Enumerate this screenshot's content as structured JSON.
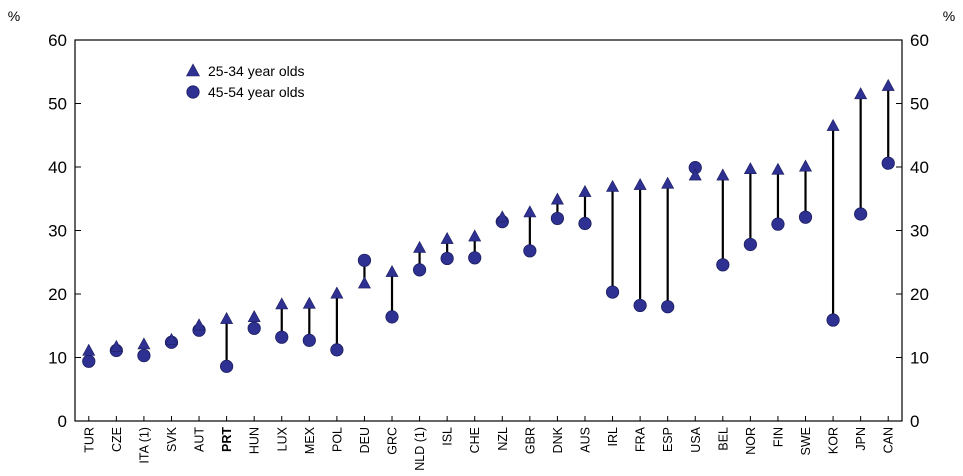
{
  "chart_data": {
    "type": "scatter",
    "categories": [
      "TUR",
      "CZE",
      "ITA (1)",
      "SVK",
      "AUT",
      "PRT",
      "HUN",
      "LUX",
      "MEX",
      "POL",
      "DEU",
      "GRC",
      "NLD (1)",
      "ISL",
      "CHE",
      "NZL",
      "GBR",
      "DNK",
      "AUS",
      "IRL",
      "FRA",
      "ESP",
      "USA",
      "BEL",
      "NOR",
      "FIN",
      "SWE",
      "KOR",
      "JPN",
      "CAN"
    ],
    "highlight_category": "PRT",
    "series": [
      {
        "name": "25-34 year olds",
        "marker": "triangle",
        "values": [
          11,
          11.6,
          12,
          12.7,
          15,
          16,
          16.3,
          18.3,
          18.4,
          20,
          21.6,
          23.4,
          27.2,
          28.6,
          29,
          32,
          32.8,
          34.8,
          36,
          36.8,
          37.1,
          37.3,
          38.6,
          38.6,
          39.6,
          39.5,
          40,
          46.4,
          51.4,
          52.7
        ]
      },
      {
        "name": "45-54 year olds",
        "marker": "circle",
        "values": [
          9.4,
          11.1,
          10.3,
          12.4,
          14.3,
          8.6,
          14.6,
          13.2,
          12.7,
          11.2,
          25.3,
          16.4,
          23.8,
          25.6,
          25.7,
          31.4,
          26.8,
          31.9,
          31.1,
          20.3,
          18.2,
          18,
          39.9,
          24.6,
          27.8,
          31,
          32.1,
          15.9,
          32.6,
          40.6
        ]
      }
    ],
    "ylim": [
      0,
      60
    ],
    "yticks": [
      0,
      10,
      20,
      30,
      40,
      50,
      60
    ],
    "yunit_left": "%",
    "yunit_right": "%",
    "legend_position": "top-left",
    "colors": {
      "marker": "#2e3192",
      "marker_edge": "#1b1d5e",
      "connector": "#000000",
      "axis": "#000000"
    }
  }
}
